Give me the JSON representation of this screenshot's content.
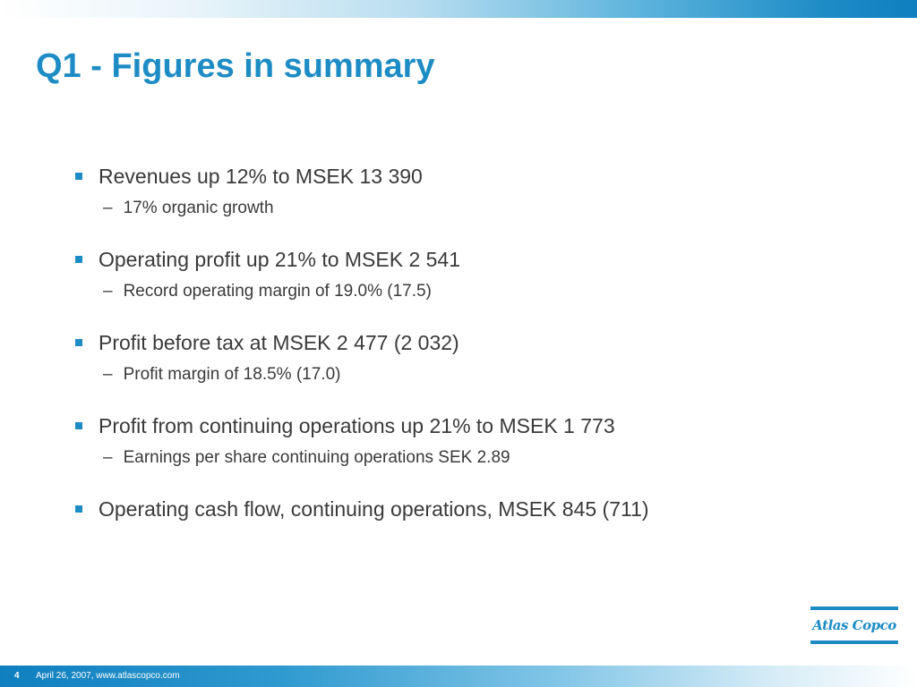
{
  "slide": {
    "title": "Q1 - Figures in summary",
    "bullets": [
      {
        "text": "Revenues up 12% to MSEK 13 390",
        "sub": "17% organic growth"
      },
      {
        "text": "Operating profit up 21% to MSEK 2 541",
        "sub": "Record operating margin of 19.0% (17.5)"
      },
      {
        "text": "Profit before tax at MSEK 2 477 (2 032)",
        "sub": "Profit margin of 18.5% (17.0)"
      },
      {
        "text": "Profit from continuing operations up 21% to MSEK 1 773",
        "sub": "Earnings per share continuing operations SEK 2.89"
      },
      {
        "text": "Operating cash flow, continuing operations, MSEK 845 (711)",
        "sub": ""
      }
    ],
    "sub_dash": "–"
  },
  "logo": {
    "text": "Atlas Copco"
  },
  "footer": {
    "page_number": "4",
    "text": "April 26, 2007, www.atlascopco.com"
  },
  "colors": {
    "accent": "#1d8cc4",
    "body_text": "#3a3a3a"
  }
}
